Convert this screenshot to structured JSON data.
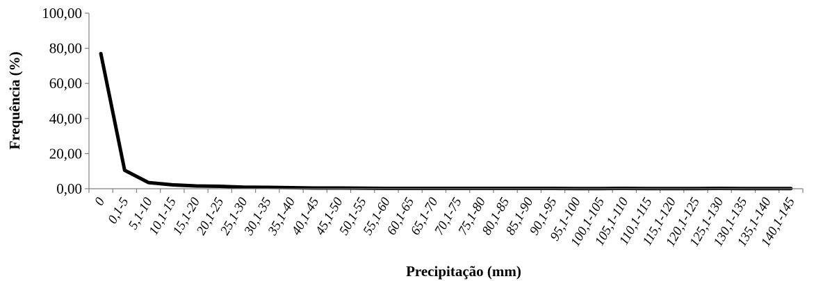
{
  "chart_data": {
    "type": "line",
    "title": "",
    "xlabel": "Precipitação (mm)",
    "ylabel": "Frequência (%)",
    "ylim": [
      0,
      100
    ],
    "yticks": [
      "0,00",
      "20,00",
      "40,00",
      "60,00",
      "80,00",
      "100,00"
    ],
    "grid": false,
    "legend": "none",
    "categories": [
      "0",
      "0,1-5",
      "5,1-10",
      "10,1-15",
      "15,1-20",
      "20,1-25",
      "25,1-30",
      "30,1-35",
      "35,1-40",
      "40,1-45",
      "45,1-50",
      "50,1-55",
      "55,1-60",
      "60,1-65",
      "65,1-70",
      "70,1-75",
      "75,1-80",
      "80,1-85",
      "85,1-90",
      "90,1-95",
      "95,1-100",
      "100,1-105",
      "105,1-110",
      "110,1-115",
      "115,1-120",
      "120,1-125",
      "125,1-130",
      "130,1-135",
      "135,1-140",
      "140,1-145"
    ],
    "series": [
      {
        "color": "#000000",
        "values": [
          77.0,
          10.5,
          3.5,
          2.2,
          1.6,
          1.4,
          0.9,
          0.8,
          0.6,
          0.4,
          0.4,
          0.3,
          0.2,
          0.2,
          0.2,
          0.2,
          0.2,
          0.2,
          0.2,
          0.2,
          0.1,
          0.1,
          0.2,
          0.1,
          0.1,
          0.1,
          0.2,
          0.1,
          0.1,
          0.1
        ]
      }
    ]
  }
}
